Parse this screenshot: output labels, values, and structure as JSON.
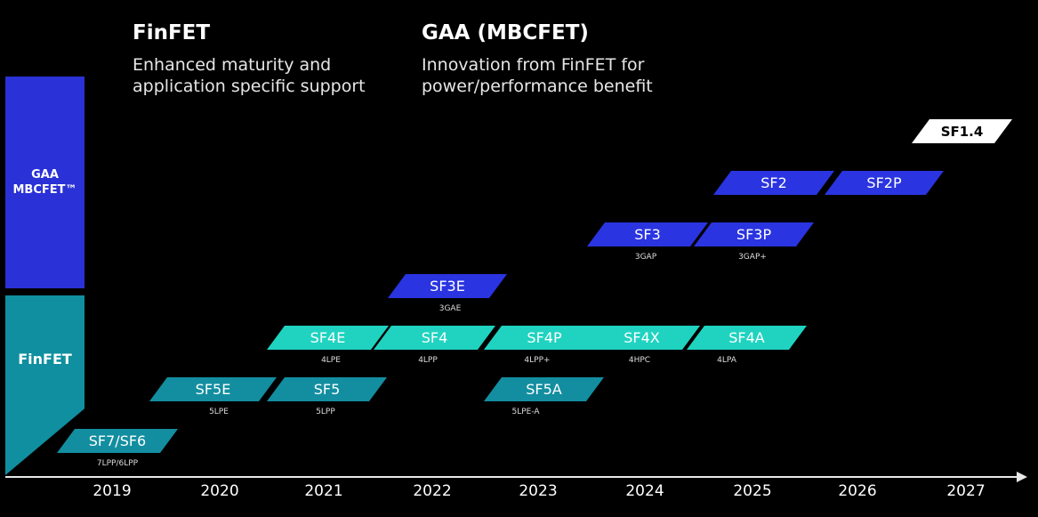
{
  "headings": {
    "finfet": {
      "title": "FinFET",
      "line1": "Enhanced maturity and",
      "line2": "application specific support"
    },
    "gaa": {
      "title": "GAA (MBCFET)",
      "line1": "Innovation from FinFET for",
      "line2": "power/performance benefit"
    }
  },
  "bands": {
    "gaa_line1": "GAA",
    "gaa_line2": "MBCFET™",
    "finfet": "FinFET"
  },
  "nodes": {
    "sf7": {
      "name": "SF7/SF6",
      "note": "7LPP/6LPP"
    },
    "sf5e": {
      "name": "SF5E",
      "note": "5LPE"
    },
    "sf5": {
      "name": "SF5",
      "note": "5LPP"
    },
    "sf4e": {
      "name": "SF4E",
      "note": "4LPE"
    },
    "sf4": {
      "name": "SF4",
      "note": "4LPP"
    },
    "sf3e": {
      "name": "SF3E",
      "note": "3GAE"
    },
    "sf5a": {
      "name": "SF5A",
      "note": "5LPE-A"
    },
    "sf4p": {
      "name": "SF4P",
      "note": "4LPP+"
    },
    "sf4x": {
      "name": "SF4X",
      "note": "4HPC"
    },
    "sf3": {
      "name": "SF3",
      "note": "3GAP"
    },
    "sf4a": {
      "name": "SF4A",
      "note": "4LPA"
    },
    "sf3p": {
      "name": "SF3P",
      "note": "3GAP+"
    },
    "sf2": {
      "name": "SF2"
    },
    "sf2p": {
      "name": "SF2P"
    },
    "sf14": {
      "name": "SF1.4"
    }
  },
  "timeline": {
    "years": [
      "2019",
      "2020",
      "2021",
      "2022",
      "2023",
      "2024",
      "2025",
      "2026",
      "2027"
    ]
  },
  "colors": {
    "gaa_blue": "#2a34e0",
    "finfet_cyan": "#1fd3c0",
    "finfet_teal": "#138ea0",
    "finfet_band": "#0f8f9f",
    "white": "#ffffff"
  }
}
